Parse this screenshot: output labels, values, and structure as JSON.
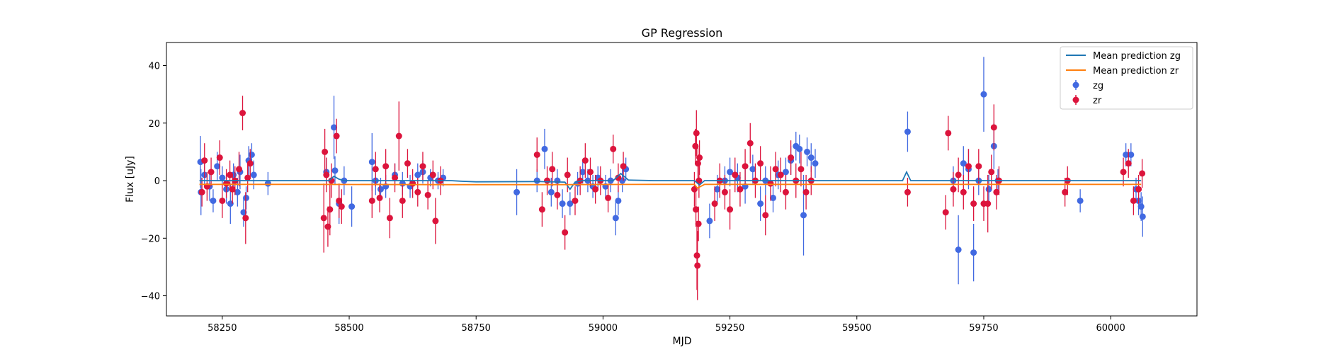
{
  "chart_data": {
    "type": "scatter",
    "title": "GP Regression",
    "xlabel": "MJD",
    "ylabel": "Flux [uJy]",
    "xlim": [
      58140,
      60170
    ],
    "ylim": [
      -47,
      48
    ],
    "xticks": [
      58250,
      58500,
      58750,
      59000,
      59250,
      59500,
      59750,
      60000
    ],
    "yticks": [
      -40,
      -20,
      0,
      20,
      40
    ],
    "grid": false,
    "legend_position": "top-right",
    "legend_entries": [
      "Mean prediction zg",
      "Mean prediction zr",
      "zg",
      "zr"
    ],
    "colors": {
      "zg_points": "#4169e1",
      "zr_points": "#dc143c",
      "zg_line": "#1f77b4",
      "zr_line": "#ff7f0e"
    },
    "series": [
      {
        "name": "Mean prediction zg",
        "kind": "line",
        "x": [
          58205,
          58300,
          58330,
          58460,
          58470,
          58480,
          58490,
          58520,
          58700,
          58720,
          58750,
          58870,
          58925,
          58935,
          58945,
          58960,
          59020,
          59035,
          59050,
          59100,
          59180,
          59190,
          59200,
          59230,
          59420,
          59550,
          59590,
          59598,
          59606,
          59640,
          59690,
          59770,
          59900,
          60030,
          60060
        ],
        "y": [
          0,
          0,
          0,
          0,
          1.5,
          0.5,
          0,
          0,
          0,
          -0.2,
          -0.4,
          -0.3,
          -0.5,
          -3,
          -0.5,
          0,
          0,
          2.5,
          0.2,
          0,
          0,
          -1.5,
          0,
          0,
          0,
          0,
          0,
          3,
          0,
          0,
          0,
          0,
          0,
          0,
          0
        ]
      },
      {
        "name": "Mean prediction zr",
        "kind": "line",
        "x": [
          58205,
          58400,
          58700,
          58900,
          59100,
          59180,
          59186,
          59200,
          59400,
          59600,
          59800,
          60000,
          60060
        ],
        "y": [
          -1.3,
          -1.3,
          -1.4,
          -1.4,
          -1.3,
          -1.3,
          -2.6,
          -1.3,
          -1.3,
          -1.3,
          -1.3,
          -1.3,
          -1.3
        ]
      },
      {
        "name": "zg",
        "kind": "errorbar",
        "points": [
          [
            58207,
            6.5,
            9
          ],
          [
            58208,
            -4,
            8
          ],
          [
            58215,
            2,
            4
          ],
          [
            58225,
            -2,
            5
          ],
          [
            58232,
            -7,
            4
          ],
          [
            58240,
            5,
            5
          ],
          [
            58250,
            1,
            4
          ],
          [
            58258,
            -3,
            5
          ],
          [
            58266,
            -8,
            7
          ],
          [
            58272,
            2,
            4
          ],
          [
            58280,
            -4,
            5
          ],
          [
            58285,
            3,
            6
          ],
          [
            58292,
            -11,
            5
          ],
          [
            58297,
            -6,
            4
          ],
          [
            58302,
            7,
            5
          ],
          [
            58308,
            9,
            4
          ],
          [
            58312,
            2,
            5
          ],
          [
            58340,
            -1,
            4
          ],
          [
            58455,
            3,
            5
          ],
          [
            58470,
            18.5,
            11
          ],
          [
            58472,
            3.5,
            5
          ],
          [
            58480,
            -8,
            7
          ],
          [
            58490,
            0,
            5
          ],
          [
            58505,
            -9,
            7
          ],
          [
            58545,
            6.5,
            10
          ],
          [
            58552,
            0,
            5
          ],
          [
            58562,
            -3,
            4
          ],
          [
            58572,
            -2,
            4
          ],
          [
            58590,
            2,
            4
          ],
          [
            58605,
            -1,
            4
          ],
          [
            58620,
            -2,
            4
          ],
          [
            58635,
            2,
            4
          ],
          [
            58645,
            3,
            4
          ],
          [
            58660,
            1,
            3
          ],
          [
            58675,
            0,
            3
          ],
          [
            58685,
            1,
            3
          ],
          [
            58830,
            -4,
            8
          ],
          [
            58870,
            0,
            4
          ],
          [
            58885,
            11,
            7
          ],
          [
            58898,
            -4,
            5
          ],
          [
            58910,
            0,
            4
          ],
          [
            58920,
            -8,
            5
          ],
          [
            58935,
            -8,
            4
          ],
          [
            58950,
            -1,
            4
          ],
          [
            58960,
            3,
            4
          ],
          [
            58970,
            0,
            4
          ],
          [
            58980,
            -2,
            4
          ],
          [
            58990,
            1,
            4
          ],
          [
            59005,
            -2,
            4
          ],
          [
            59015,
            0,
            4
          ],
          [
            59025,
            -13,
            6
          ],
          [
            59030,
            -7,
            5
          ],
          [
            59038,
            0,
            4
          ],
          [
            59045,
            4,
            4
          ],
          [
            59210,
            -14,
            6
          ],
          [
            59225,
            -3,
            5
          ],
          [
            59240,
            0,
            5
          ],
          [
            59250,
            3,
            5
          ],
          [
            59265,
            1,
            5
          ],
          [
            59280,
            -2,
            6
          ],
          [
            59295,
            4,
            5
          ],
          [
            59310,
            -8,
            6
          ],
          [
            59320,
            0,
            5
          ],
          [
            59335,
            -6,
            5
          ],
          [
            59345,
            2,
            5
          ],
          [
            59360,
            3,
            5
          ],
          [
            59370,
            7,
            5
          ],
          [
            59380,
            12,
            5
          ],
          [
            59387,
            11,
            5
          ],
          [
            59395,
            -12,
            14
          ],
          [
            59402,
            10,
            5
          ],
          [
            59410,
            8,
            5
          ],
          [
            59418,
            6,
            5
          ],
          [
            59600,
            17,
            7
          ],
          [
            59690,
            0,
            5
          ],
          [
            59700,
            -24,
            12
          ],
          [
            59710,
            6,
            6
          ],
          [
            59720,
            4,
            7
          ],
          [
            59730,
            -25,
            10
          ],
          [
            59740,
            0,
            5
          ],
          [
            59750,
            30,
            13
          ],
          [
            59760,
            -3,
            5
          ],
          [
            59770,
            12,
            8
          ],
          [
            59778,
            0,
            4
          ],
          [
            59940,
            -7,
            4
          ],
          [
            60030,
            9,
            4
          ],
          [
            60040,
            9,
            4
          ],
          [
            60050,
            -3,
            4
          ],
          [
            60055,
            -7,
            5
          ],
          [
            60060,
            -9,
            5
          ],
          [
            60063,
            -12.5,
            7
          ]
        ]
      },
      {
        "name": "zr",
        "kind": "errorbar",
        "points": [
          [
            58210,
            -4,
            5
          ],
          [
            58215,
            7,
            6
          ],
          [
            58220,
            -2,
            5
          ],
          [
            58228,
            3,
            5
          ],
          [
            58245,
            8,
            6
          ],
          [
            58250,
            -7,
            6
          ],
          [
            58258,
            -1,
            5
          ],
          [
            58265,
            2,
            5
          ],
          [
            58270,
            -3,
            5
          ],
          [
            58275,
            0,
            5
          ],
          [
            58283,
            4,
            6
          ],
          [
            58290,
            23.5,
            6
          ],
          [
            58296,
            -13,
            9
          ],
          [
            58300,
            1,
            5
          ],
          [
            58305,
            6,
            5
          ],
          [
            58450,
            -13,
            12
          ],
          [
            58452,
            10,
            8
          ],
          [
            58455,
            2,
            6
          ],
          [
            58458,
            -16,
            7
          ],
          [
            58462,
            -10,
            9
          ],
          [
            58465,
            0,
            6
          ],
          [
            58475,
            15.5,
            6
          ],
          [
            58480,
            -7,
            6
          ],
          [
            58485,
            -9,
            6
          ],
          [
            58545,
            -7,
            6
          ],
          [
            58552,
            4,
            6
          ],
          [
            58560,
            -6,
            5
          ],
          [
            58572,
            5,
            6
          ],
          [
            58580,
            -13,
            7
          ],
          [
            58590,
            1,
            5
          ],
          [
            58598,
            15.5,
            12
          ],
          [
            58605,
            -7,
            6
          ],
          [
            58615,
            6,
            5
          ],
          [
            58625,
            -1,
            5
          ],
          [
            58635,
            -4,
            5
          ],
          [
            58645,
            5,
            5
          ],
          [
            58655,
            -5,
            5
          ],
          [
            58665,
            2,
            5
          ],
          [
            58670,
            -14,
            8
          ],
          [
            58680,
            0,
            5
          ],
          [
            58870,
            9,
            6
          ],
          [
            58880,
            -10,
            6
          ],
          [
            58890,
            0,
            5
          ],
          [
            58900,
            4,
            6
          ],
          [
            58910,
            -5,
            5
          ],
          [
            58925,
            -18,
            6
          ],
          [
            58930,
            2,
            6
          ],
          [
            58945,
            -7,
            5
          ],
          [
            58955,
            0,
            5
          ],
          [
            58965,
            7,
            6
          ],
          [
            58975,
            3,
            5
          ],
          [
            58985,
            -3,
            5
          ],
          [
            58995,
            0,
            5
          ],
          [
            59010,
            -6,
            5
          ],
          [
            59020,
            11,
            5
          ],
          [
            59030,
            1,
            5
          ],
          [
            59040,
            5,
            5
          ],
          [
            59180,
            -3,
            6
          ],
          [
            59182,
            12,
            6
          ],
          [
            59183,
            -10,
            6
          ],
          [
            59184,
            16.5,
            8
          ],
          [
            59185,
            -26,
            12
          ],
          [
            59186,
            -29.5,
            12
          ],
          [
            59187,
            6,
            6
          ],
          [
            59188,
            -15,
            6
          ],
          [
            59189,
            0,
            6
          ],
          [
            59190,
            8,
            6
          ],
          [
            59220,
            -8,
            6
          ],
          [
            59230,
            0,
            6
          ],
          [
            59240,
            -4,
            6
          ],
          [
            59250,
            -10,
            7
          ],
          [
            59260,
            2,
            6
          ],
          [
            59270,
            -3,
            6
          ],
          [
            59280,
            5,
            6
          ],
          [
            59290,
            13,
            7
          ],
          [
            59300,
            0,
            6
          ],
          [
            59310,
            6,
            6
          ],
          [
            59320,
            -12,
            7
          ],
          [
            59330,
            -1,
            6
          ],
          [
            59340,
            4,
            6
          ],
          [
            59350,
            2,
            6
          ],
          [
            59360,
            -4,
            6
          ],
          [
            59370,
            8,
            6
          ],
          [
            59380,
            0,
            6
          ],
          [
            59390,
            4,
            6
          ],
          [
            59400,
            -4,
            6
          ],
          [
            59410,
            0,
            5
          ],
          [
            59600,
            -4,
            5
          ],
          [
            59675,
            -11,
            6
          ],
          [
            59680,
            16.5,
            6
          ],
          [
            59690,
            -3,
            6
          ],
          [
            59700,
            2,
            6
          ],
          [
            59710,
            -4,
            6
          ],
          [
            59720,
            5,
            6
          ],
          [
            59730,
            -8,
            6
          ],
          [
            59740,
            5,
            6
          ],
          [
            59750,
            -8,
            6
          ],
          [
            59758,
            -8,
            10
          ],
          [
            59765,
            3,
            6
          ],
          [
            59770,
            18.5,
            8
          ],
          [
            59775,
            -4,
            6
          ],
          [
            59780,
            0,
            5
          ],
          [
            59910,
            -4,
            5
          ],
          [
            59915,
            0,
            5
          ],
          [
            60025,
            3,
            5
          ],
          [
            60035,
            6,
            5
          ],
          [
            60045,
            -7,
            5
          ],
          [
            60055,
            -3,
            5
          ],
          [
            60062,
            2.5,
            5
          ]
        ]
      }
    ]
  }
}
